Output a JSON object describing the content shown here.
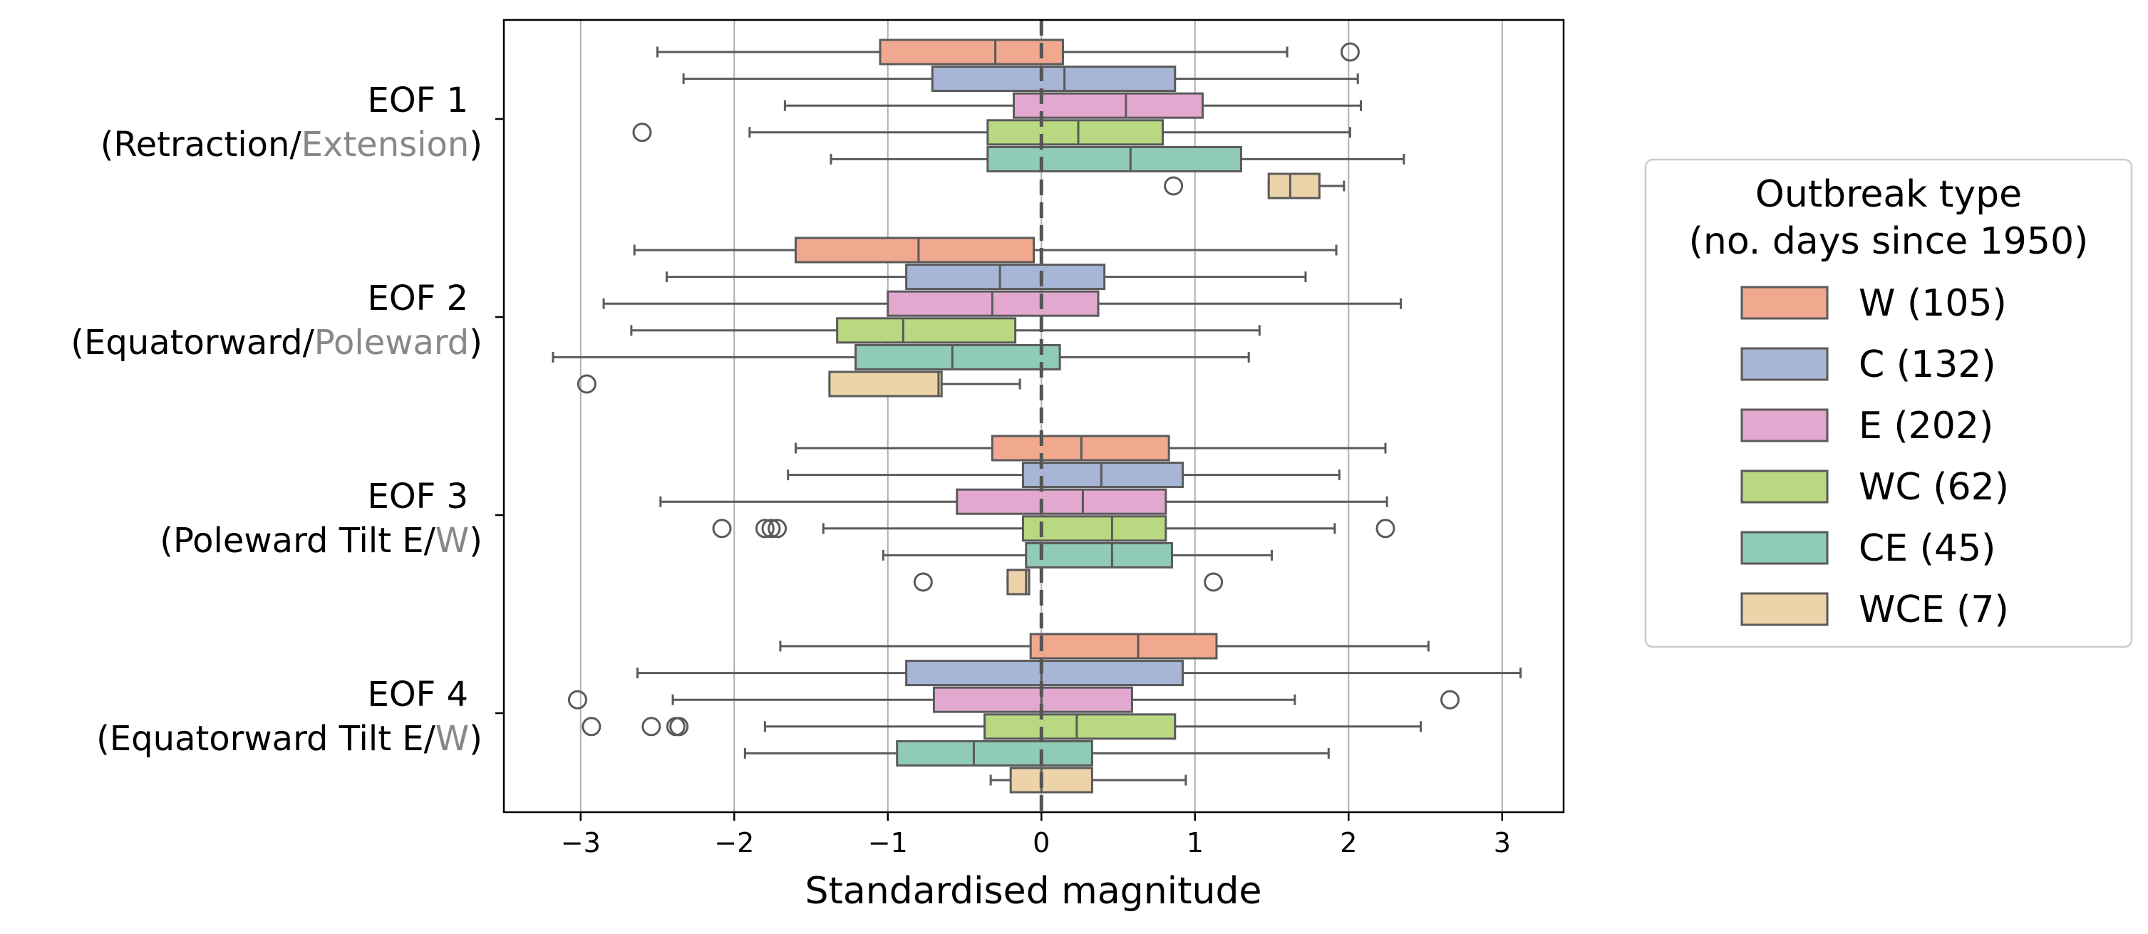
{
  "chart_data": {
    "type": "boxplot",
    "orientation": "horizontal",
    "xlabel": "Standardised magnitude",
    "xlim": [
      -3.5,
      3.4
    ],
    "xticks": [
      -3,
      -2,
      -1,
      0,
      1,
      2,
      3
    ],
    "xtick_labels": [
      "−3",
      "−2",
      "−1",
      "0",
      "1",
      "2",
      "3"
    ],
    "grid": "vertical",
    "reference_line_x": 0,
    "legend_position": "right",
    "legend_title": [
      "Outbreak type",
      "(no. days since 1950)"
    ],
    "groups": [
      {
        "line1": "EOF 1",
        "line2": {
          "pre": "(Retraction/",
          "gray": "Extension",
          "post": ")"
        }
      },
      {
        "line1": "EOF 2",
        "line2": {
          "pre": "(Equatorward/",
          "gray": "Poleward",
          "post": ")"
        }
      },
      {
        "line1": "EOF 3",
        "line2": {
          "pre": "(Poleward Tilt E/",
          "gray": "W",
          "post": ")"
        }
      },
      {
        "line1": "EOF 4",
        "line2": {
          "pre": "(Equatorward Tilt E/",
          "gray": "W",
          "post": ")"
        }
      }
    ],
    "series": [
      {
        "name": "W (105)",
        "color": "#f0a98e",
        "boxes": [
          {
            "whislo": -2.5,
            "q1": -1.05,
            "med": -0.3,
            "q3": 0.14,
            "whishi": 1.6,
            "fliers": [
              2.01
            ]
          },
          {
            "whislo": -2.65,
            "q1": -1.6,
            "med": -0.8,
            "q3": -0.05,
            "whishi": 1.92,
            "fliers": []
          },
          {
            "whislo": -1.6,
            "q1": -0.32,
            "med": 0.26,
            "q3": 0.83,
            "whishi": 2.24,
            "fliers": []
          },
          {
            "whislo": -1.7,
            "q1": -0.07,
            "med": 0.63,
            "q3": 1.14,
            "whishi": 2.52,
            "fliers": []
          }
        ]
      },
      {
        "name": "C (132)",
        "color": "#a7b5d6",
        "boxes": [
          {
            "whislo": -2.33,
            "q1": -0.71,
            "med": 0.15,
            "q3": 0.87,
            "whishi": 2.06,
            "fliers": []
          },
          {
            "whislo": -2.44,
            "q1": -0.88,
            "med": -0.27,
            "q3": 0.41,
            "whishi": 1.72,
            "fliers": []
          },
          {
            "whislo": -1.65,
            "q1": -0.12,
            "med": 0.39,
            "q3": 0.92,
            "whishi": 1.94,
            "fliers": []
          },
          {
            "whislo": -2.63,
            "q1": -0.88,
            "med": 0.0,
            "q3": 0.92,
            "whishi": 3.12,
            "fliers": []
          }
        ]
      },
      {
        "name": "E (202)",
        "color": "#e3a8cf",
        "boxes": [
          {
            "whislo": -1.67,
            "q1": -0.18,
            "med": 0.55,
            "q3": 1.05,
            "whishi": 2.08,
            "fliers": []
          },
          {
            "whislo": -2.85,
            "q1": -1.0,
            "med": -0.32,
            "q3": 0.37,
            "whishi": 2.34,
            "fliers": []
          },
          {
            "whislo": -2.48,
            "q1": -0.55,
            "med": 0.27,
            "q3": 0.81,
            "whishi": 2.25,
            "fliers": []
          },
          {
            "whislo": -2.4,
            "q1": -0.7,
            "med": 0.0,
            "q3": 0.59,
            "whishi": 1.65,
            "fliers": [
              -3.02,
              2.66
            ]
          }
        ]
      },
      {
        "name": "WC (62)",
        "color": "#b8d981",
        "boxes": [
          {
            "whislo": -1.9,
            "q1": -0.35,
            "med": 0.24,
            "q3": 0.79,
            "whishi": 2.01,
            "fliers": [
              -2.6
            ]
          },
          {
            "whislo": -2.67,
            "q1": -1.33,
            "med": -0.9,
            "q3": -0.17,
            "whishi": 1.42,
            "fliers": []
          },
          {
            "whislo": -1.42,
            "q1": -0.12,
            "med": 0.46,
            "q3": 0.81,
            "whishi": 1.91,
            "fliers": [
              -2.08,
              -1.8,
              -1.76,
              -1.72,
              2.24
            ]
          },
          {
            "whislo": -1.8,
            "q1": -0.37,
            "med": 0.23,
            "q3": 0.87,
            "whishi": 2.47,
            "fliers": [
              -2.93,
              -2.54,
              -2.38,
              -2.36
            ]
          }
        ]
      },
      {
        "name": "CE (45)",
        "color": "#90cbb5",
        "boxes": [
          {
            "whislo": -1.37,
            "q1": -0.35,
            "med": 0.58,
            "q3": 1.3,
            "whishi": 2.36,
            "fliers": []
          },
          {
            "whislo": -3.18,
            "q1": -1.21,
            "med": -0.58,
            "q3": 0.12,
            "whishi": 1.35,
            "fliers": []
          },
          {
            "whislo": -1.03,
            "q1": -0.1,
            "med": 0.46,
            "q3": 0.85,
            "whishi": 1.5,
            "fliers": []
          },
          {
            "whislo": -1.93,
            "q1": -0.94,
            "med": -0.44,
            "q3": 0.33,
            "whishi": 1.87,
            "fliers": []
          }
        ]
      },
      {
        "name": "WCE (7)",
        "color": "#ecd3a9",
        "boxes": [
          {
            "whislo": 1.48,
            "q1": 1.48,
            "med": 1.62,
            "q3": 1.81,
            "whishi": 1.97,
            "fliers": [
              0.86
            ]
          },
          {
            "whislo": -1.38,
            "q1": -1.38,
            "med": -0.67,
            "q3": -0.65,
            "whishi": -0.14,
            "fliers": [
              -2.96
            ]
          },
          {
            "whislo": -0.22,
            "q1": -0.22,
            "med": -0.1,
            "q3": -0.08,
            "whishi": -0.08,
            "fliers": [
              -0.77,
              1.12
            ]
          },
          {
            "whislo": -0.33,
            "q1": -0.2,
            "med": 0.0,
            "q3": 0.33,
            "whishi": 0.94,
            "fliers": []
          }
        ]
      }
    ]
  }
}
